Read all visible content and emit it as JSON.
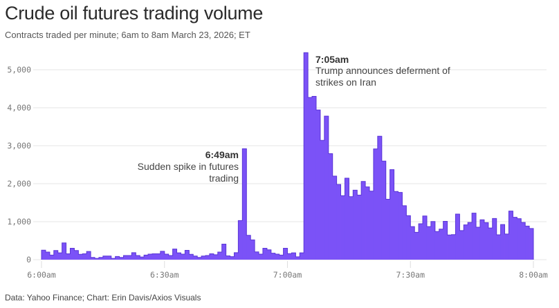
{
  "title": "Crude oil futures trading volume",
  "subtitle": "Contracts traded per minute; 6am to 8am March 23, 2026; ET",
  "source": "Data: Yahoo Finance; Chart: Erin Davis/Axios Visuals",
  "colors": {
    "bar_fill": "#7b52f7",
    "bar_stroke": "#5a36d6",
    "grid": "#e4e4e4"
  },
  "chart_data": {
    "type": "area",
    "step": true,
    "title": "Crude oil futures trading volume",
    "subtitle": "Contracts traded per minute; 6am to 8am March 23, 2026; ET",
    "xlabel": "",
    "ylabel": "",
    "x_start": "6:00am",
    "x_end": "8:00am",
    "interval_minutes": 1,
    "ylim": [
      0,
      5000
    ],
    "grid": true,
    "y_ticks": [
      0,
      1000,
      2000,
      3000,
      4000,
      5000
    ],
    "y_tick_labels": [
      "0",
      "1,000",
      "2,000",
      "3,000",
      "4,000",
      "5,000"
    ],
    "x_tick_minutes": [
      0,
      30,
      60,
      90,
      120
    ],
    "x_tick_labels": [
      "6:00am",
      "6:30am",
      "7:00am",
      "7:30am",
      "8:00am"
    ],
    "values": [
      250,
      200,
      120,
      240,
      180,
      440,
      155,
      300,
      240,
      140,
      155,
      215,
      60,
      35,
      60,
      95,
      95,
      35,
      85,
      60,
      110,
      110,
      185,
      110,
      70,
      120,
      145,
      155,
      155,
      220,
      145,
      110,
      280,
      180,
      145,
      245,
      140,
      95,
      60,
      95,
      110,
      155,
      130,
      200,
      410,
      100,
      80,
      185,
      1030,
      2920,
      640,
      520,
      205,
      145,
      300,
      260,
      170,
      145,
      120,
      300,
      160,
      180,
      75,
      180,
      5450,
      4270,
      4300,
      3940,
      3140,
      3780,
      2790,
      2200,
      1980,
      1685,
      2145,
      1660,
      1830,
      1700,
      2060,
      1915,
      1805,
      2915,
      3250,
      2595,
      1590,
      2370,
      1795,
      1770,
      1420,
      1160,
      870,
      720,
      945,
      1150,
      870,
      1005,
      740,
      805,
      1010,
      650,
      660,
      1200,
      765,
      915,
      980,
      1225,
      855,
      1050,
      975,
      835,
      1085,
      655,
      925,
      675,
      1280,
      1115,
      1080,
      980,
      885,
      820
    ],
    "annotations": [
      {
        "time": "6:49am",
        "lines": [
          "Sudden spike in futures",
          "trading"
        ]
      },
      {
        "time": "7:05am",
        "lines": [
          "Trump announces deferment of",
          "strikes on Iran"
        ]
      }
    ]
  }
}
